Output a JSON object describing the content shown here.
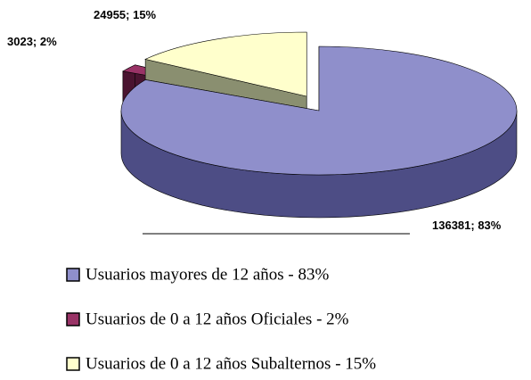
{
  "chart_data": {
    "type": "pie",
    "categories": [
      "Usuarios mayores de 12 años - 83%",
      "Usuarios de 0 a 12 años Oficiales - 2%",
      "Usuarios de 0 a 12 años Subalternos - 15%"
    ],
    "values": [
      136381,
      3023,
      24955
    ],
    "value_labels": [
      "136381; 83%",
      "3023; 2%",
      "24955; 15%"
    ],
    "colors": [
      "#8f8fcb",
      "#993366",
      "#ffffcc"
    ],
    "side_colors": [
      "#4d4d85",
      "#4a1430",
      "#8a8f70"
    ],
    "explode": [
      0,
      1,
      1
    ]
  }
}
